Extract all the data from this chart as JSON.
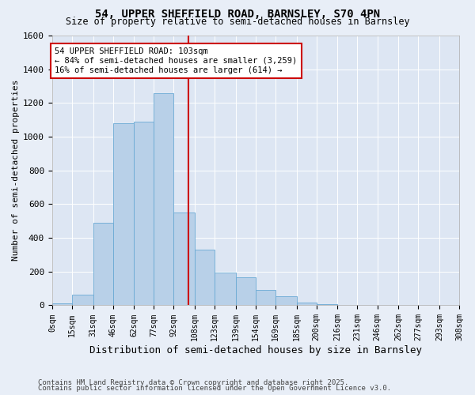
{
  "title": "54, UPPER SHEFFIELD ROAD, BARNSLEY, S70 4PN",
  "subtitle": "Size of property relative to semi-detached houses in Barnsley",
  "xlabel": "Distribution of semi-detached houses by size in Barnsley",
  "ylabel": "Number of semi-detached properties",
  "footnote1": "Contains HM Land Registry data © Crown copyright and database right 2025.",
  "footnote2": "Contains public sector information licensed under the Open Government Licence v3.0.",
  "annotation_title": "54 UPPER SHEFFIELD ROAD: 103sqm",
  "annotation_line1": "← 84% of semi-detached houses are smaller (3,259)",
  "annotation_line2": "16% of semi-detached houses are larger (614) →",
  "property_size": 103,
  "bin_edges": [
    0,
    15,
    31,
    46,
    62,
    77,
    92,
    108,
    123,
    139,
    154,
    169,
    185,
    200,
    216,
    231,
    246,
    262,
    277,
    293,
    308
  ],
  "bar_heights": [
    10,
    65,
    490,
    1080,
    1090,
    1260,
    550,
    330,
    195,
    165,
    90,
    55,
    18,
    8,
    2,
    1,
    0,
    3,
    0,
    1
  ],
  "bar_color": "#b8d0e8",
  "bar_edgecolor": "#6aaad4",
  "vline_color": "#cc0000",
  "vline_x": 103,
  "ylim": [
    0,
    1600
  ],
  "yticks": [
    0,
    200,
    400,
    600,
    800,
    1000,
    1200,
    1400,
    1600
  ],
  "xlim": [
    0,
    308
  ],
  "tick_labels": [
    "0sqm",
    "15sqm",
    "31sqm",
    "46sqm",
    "62sqm",
    "77sqm",
    "92sqm",
    "108sqm",
    "123sqm",
    "139sqm",
    "154sqm",
    "169sqm",
    "185sqm",
    "200sqm",
    "216sqm",
    "231sqm",
    "246sqm",
    "262sqm",
    "277sqm",
    "293sqm",
    "308sqm"
  ],
  "bg_color": "#e8eef7",
  "plot_bg_color": "#dde6f3",
  "grid_color": "#ffffff",
  "annotation_box_color": "#cc0000",
  "title_fontsize": 10,
  "subtitle_fontsize": 8.5,
  "axis_label_fontsize": 8,
  "tick_fontsize": 7,
  "annotation_fontsize": 7.5,
  "footnote_fontsize": 6.5
}
